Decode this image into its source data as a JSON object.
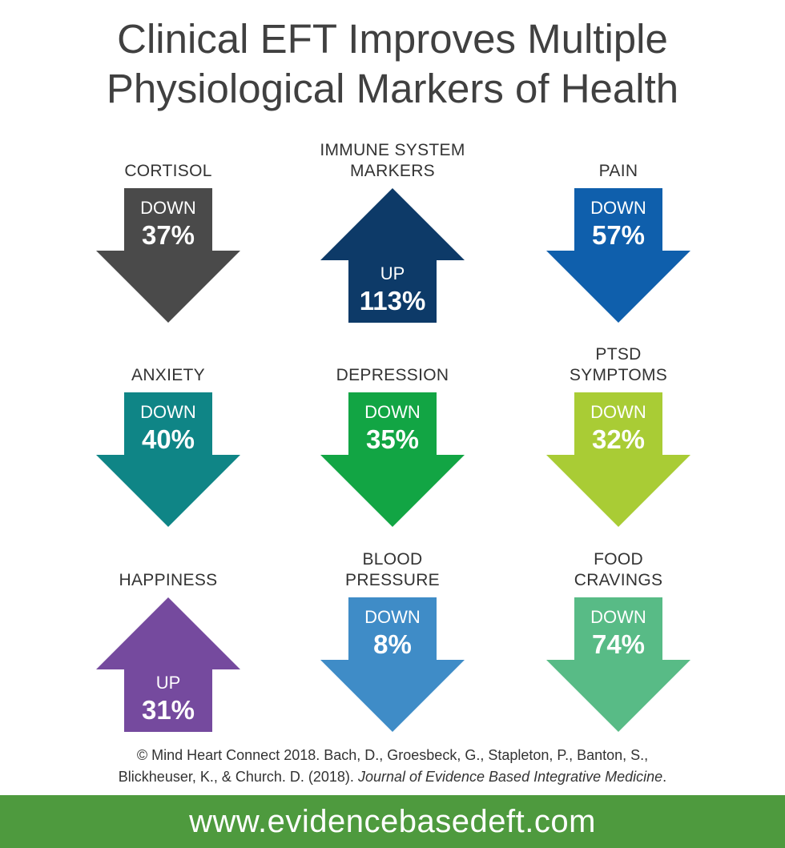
{
  "title": {
    "line1": "Clinical EFT Improves Multiple",
    "line2": "Physiological Markers of Health"
  },
  "markers": [
    {
      "label_lines": [
        "CORTISOL"
      ],
      "direction": "DOWN",
      "value": "37%",
      "color": "#4a4a4a"
    },
    {
      "label_lines": [
        "IMMUNE SYSTEM",
        "MARKERS"
      ],
      "direction": "UP",
      "value": "113%",
      "color": "#0d3a68"
    },
    {
      "label_lines": [
        "PAIN"
      ],
      "direction": "DOWN",
      "value": "57%",
      "color": "#0f5fac"
    },
    {
      "label_lines": [
        "ANXIETY"
      ],
      "direction": "DOWN",
      "value": "40%",
      "color": "#0f8586"
    },
    {
      "label_lines": [
        "DEPRESSION"
      ],
      "direction": "DOWN",
      "value": "35%",
      "color": "#12a544"
    },
    {
      "label_lines": [
        "PTSD",
        "SYMPTOMS"
      ],
      "direction": "DOWN",
      "value": "32%",
      "color": "#a9cc35"
    },
    {
      "label_lines": [
        "HAPPINESS"
      ],
      "direction": "UP",
      "value": "31%",
      "color": "#754a9e"
    },
    {
      "label_lines": [
        "BLOOD",
        "PRESSURE"
      ],
      "direction": "DOWN",
      "value": "8%",
      "color": "#3f8cc7"
    },
    {
      "label_lines": [
        "FOOD",
        "CRAVINGS"
      ],
      "direction": "DOWN",
      "value": "74%",
      "color": "#58bb86"
    }
  ],
  "citation": {
    "line1": "© Mind Heart Connect 2018. Bach, D., Groesbeck, G., Stapleton, P., Banton, S.,",
    "line2_plain": "Blickheuser, K., & Church. D. (2018). ",
    "line2_journal": "Journal of Evidence Based Integrative Medicine",
    "line2_end": "."
  },
  "footer": {
    "url": "www.evidencebasedeft.com",
    "color": "#4e9a3e"
  }
}
